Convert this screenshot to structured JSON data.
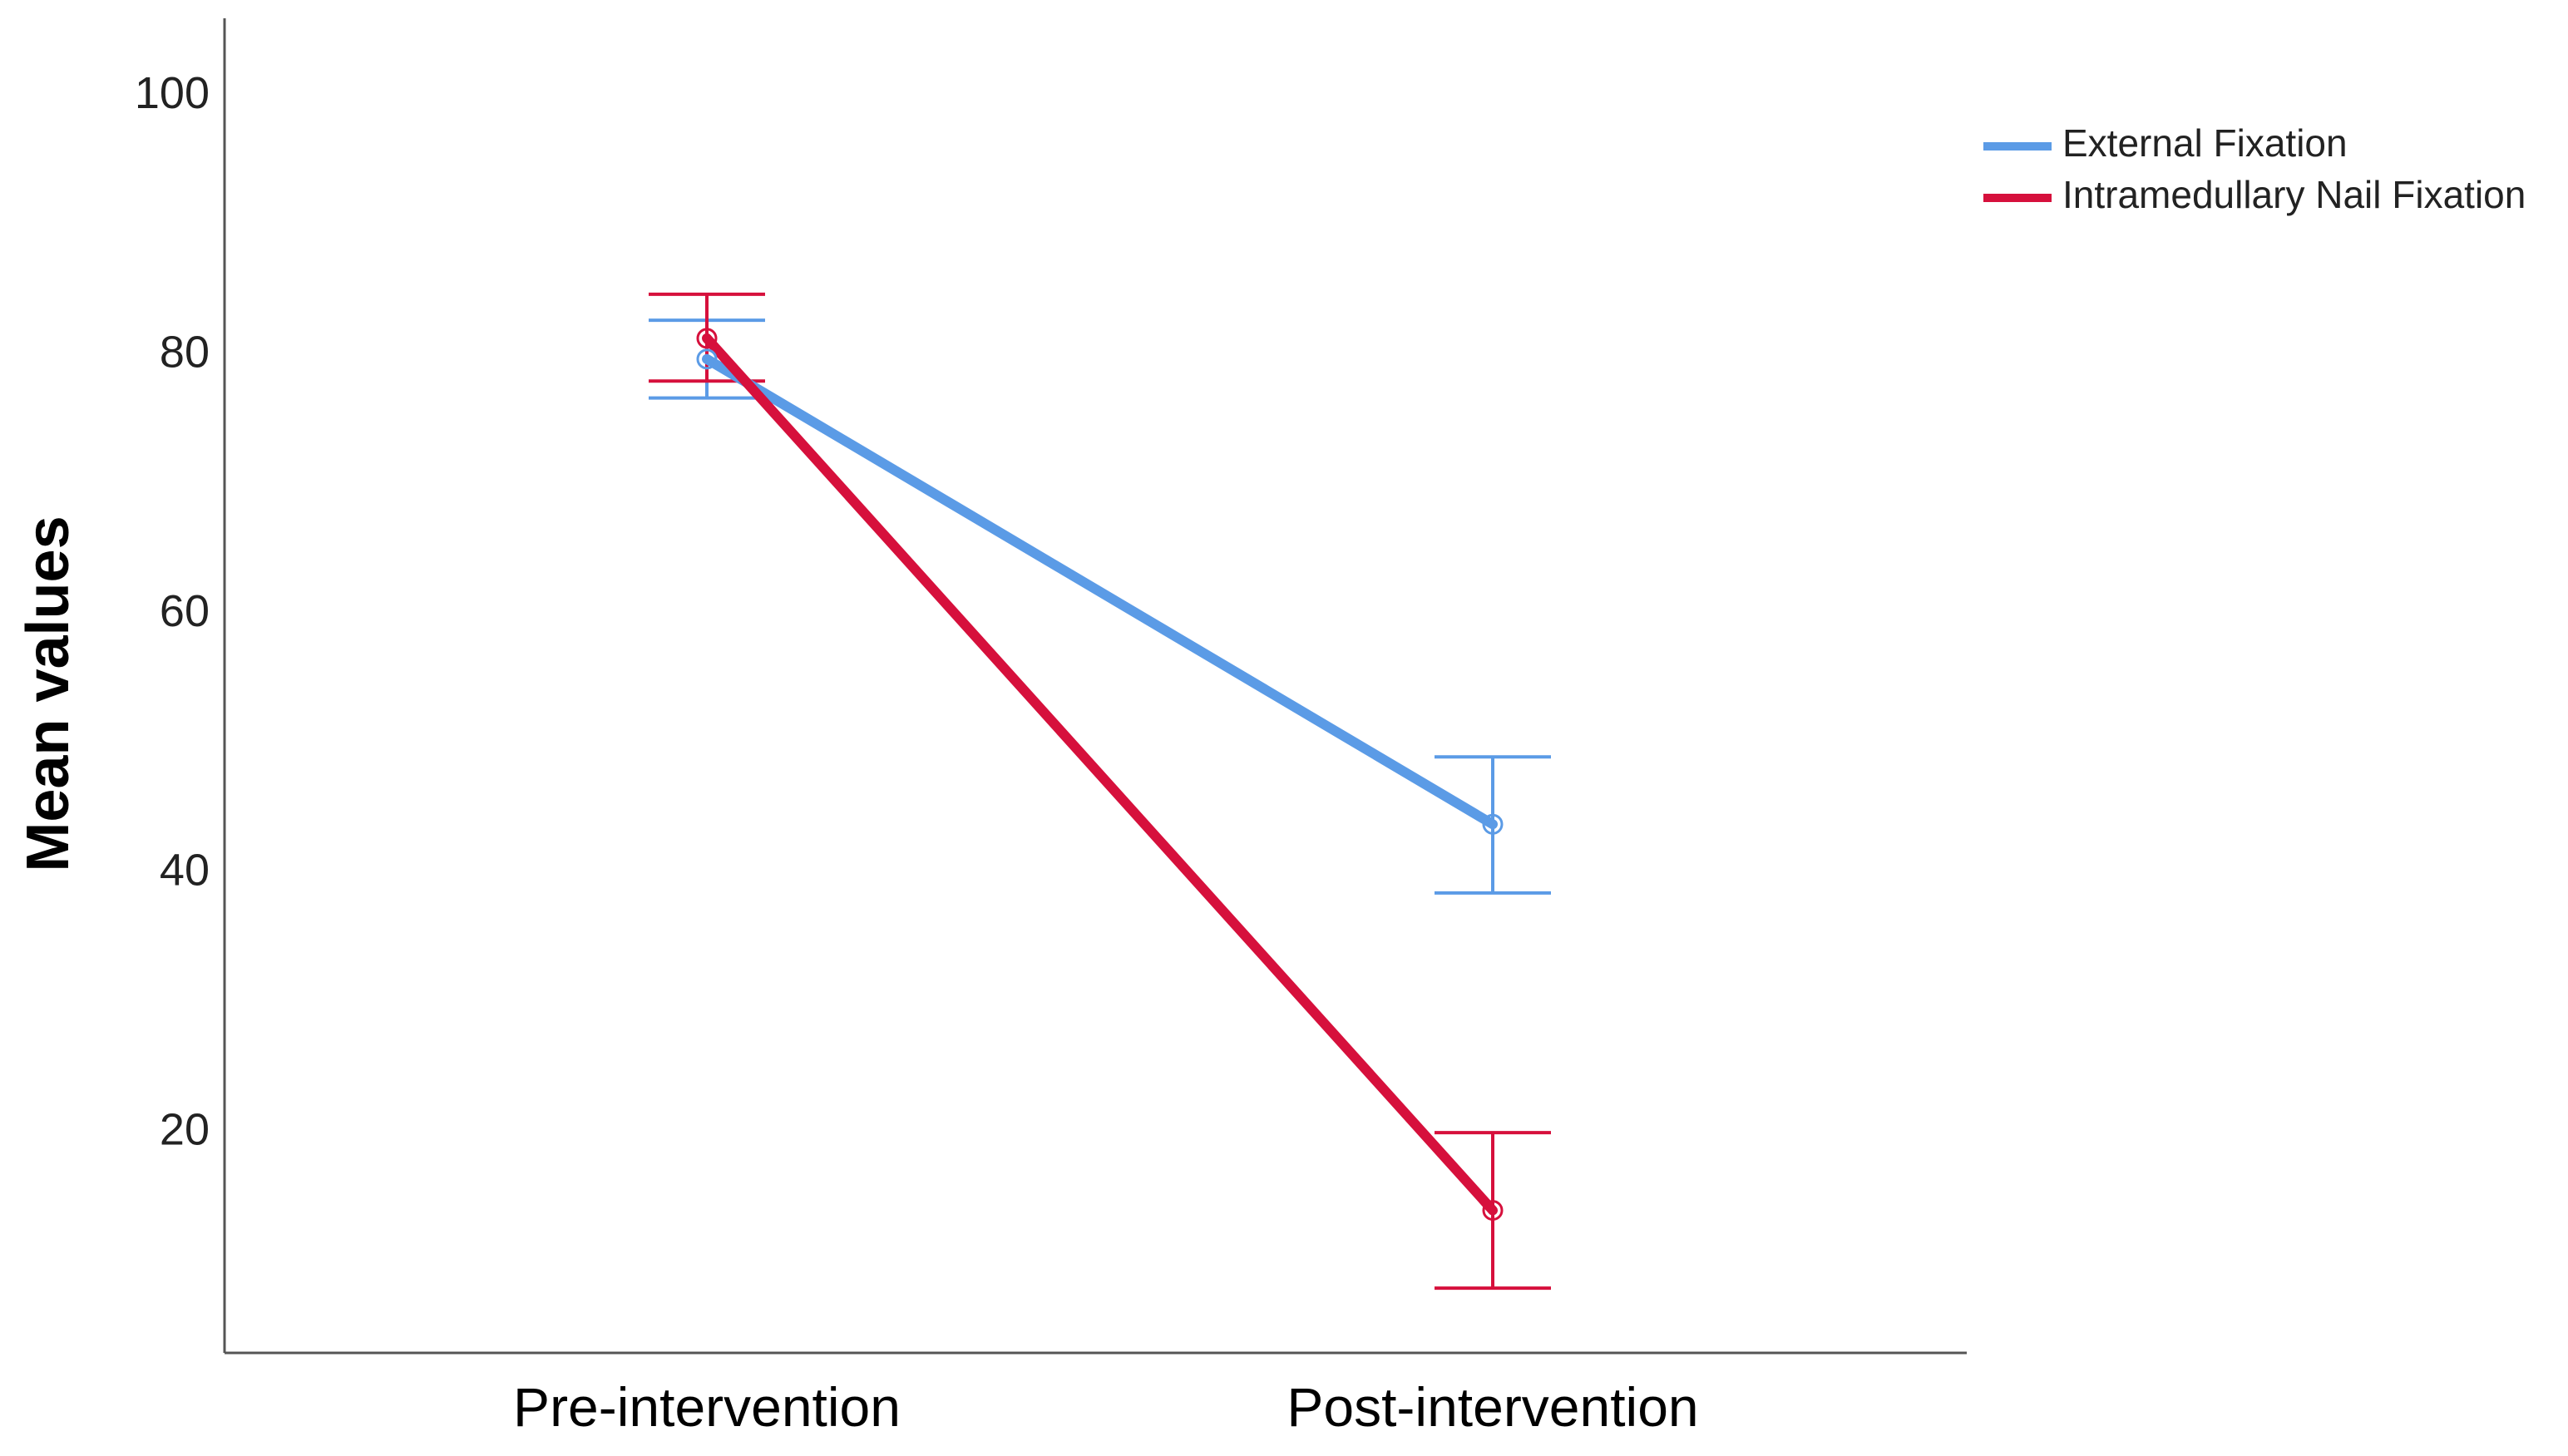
{
  "chart_data": {
    "type": "line",
    "title": "",
    "xlabel": "",
    "ylabel": "Mean values",
    "categories": [
      "Pre-intervention",
      "Post-intervention"
    ],
    "ylim": [
      3,
      106
    ],
    "yticks": [
      20,
      40,
      60,
      80,
      100
    ],
    "grid": false,
    "legend_position": "top-right",
    "series": [
      {
        "name": "External Fixation",
        "color": "#5b9be6",
        "values": [
          79.7,
          43.8
        ],
        "error_low": [
          76.7,
          38.5
        ],
        "error_high": [
          82.7,
          49.0
        ]
      },
      {
        "name": "Intramedullary Nail Fixation",
        "color": "#d6103c",
        "values": [
          81.3,
          14.0
        ],
        "error_low": [
          78.0,
          8.0
        ],
        "error_high": [
          84.7,
          20.0
        ]
      }
    ]
  }
}
